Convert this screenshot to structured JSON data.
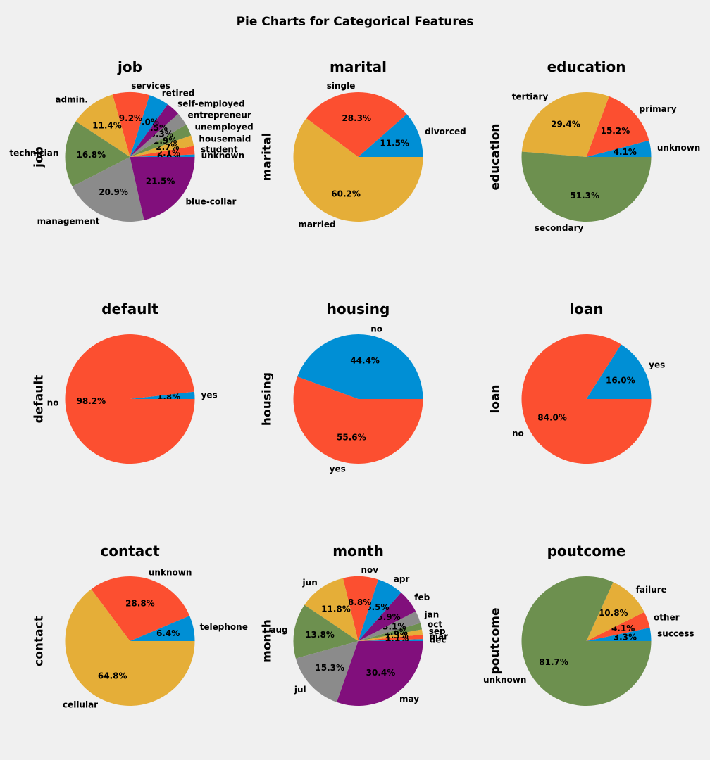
{
  "figure": {
    "title": "Pie Charts for Categorical Features"
  },
  "colors": [
    "#008fd5",
    "#fc4f30",
    "#e5ae38",
    "#6d904f",
    "#8b8b8b",
    "#810f7c"
  ],
  "chart_data": [
    {
      "type": "pie",
      "title": "job",
      "ylabel": "job",
      "categories": [
        "unknown",
        "student",
        "housemaid",
        "unemployed",
        "entrepreneur",
        "self-employed",
        "retired",
        "services",
        "admin.",
        "technician",
        "management",
        "blue-collar"
      ],
      "values": [
        0.6,
        2.1,
        2.7,
        2.9,
        3.3,
        3.5,
        5.0,
        9.2,
        11.4,
        16.8,
        20.9,
        21.5
      ],
      "pct_labels": [
        "0.6%",
        "2.1%",
        "2.7%",
        "2.9%",
        "3.3%",
        "3.5%",
        "5.0%",
        "9.2%",
        "11.4%",
        "16.8%",
        "20.9%",
        "21.5%"
      ]
    },
    {
      "type": "pie",
      "title": "marital",
      "ylabel": "marital",
      "categories": [
        "divorced",
        "single",
        "married"
      ],
      "values": [
        11.5,
        28.3,
        60.2
      ],
      "pct_labels": [
        "11.5%",
        "28.3%",
        "60.2%"
      ]
    },
    {
      "type": "pie",
      "title": "education",
      "ylabel": "education",
      "categories": [
        "unknown",
        "primary",
        "tertiary",
        "secondary"
      ],
      "values": [
        4.1,
        15.2,
        29.4,
        51.3
      ],
      "pct_labels": [
        "4.1%",
        "15.2%",
        "29.4%",
        "51.3%"
      ]
    },
    {
      "type": "pie",
      "title": "default",
      "ylabel": "default",
      "categories": [
        "yes",
        "no"
      ],
      "values": [
        1.8,
        98.2
      ],
      "pct_labels": [
        "1.8%",
        "98.2%"
      ]
    },
    {
      "type": "pie",
      "title": "housing",
      "ylabel": "housing",
      "categories": [
        "no",
        "yes"
      ],
      "values": [
        44.4,
        55.6
      ],
      "pct_labels": [
        "44.4%",
        "55.6%"
      ]
    },
    {
      "type": "pie",
      "title": "loan",
      "ylabel": "loan",
      "categories": [
        "yes",
        "no"
      ],
      "values": [
        16.0,
        84.0
      ],
      "pct_labels": [
        "16.0%",
        "84.0%"
      ]
    },
    {
      "type": "pie",
      "title": "contact",
      "ylabel": "contact",
      "categories": [
        "telephone",
        "unknown",
        "cellular"
      ],
      "values": [
        6.4,
        28.8,
        64.8
      ],
      "pct_labels": [
        "6.4%",
        "28.8%",
        "64.8%"
      ]
    },
    {
      "type": "pie",
      "title": "month",
      "ylabel": "month",
      "categories": [
        "dec",
        "mar",
        "sep",
        "oct",
        "jan",
        "feb",
        "apr",
        "nov",
        "jun",
        "aug",
        "jul",
        "may"
      ],
      "values": [
        0.5,
        1.1,
        1.3,
        1.6,
        3.1,
        5.9,
        6.5,
        8.8,
        11.8,
        13.8,
        15.3,
        30.4
      ],
      "pct_labels": [
        "0.5%",
        "1.1%",
        "1.3%",
        "1.6%",
        "3.1%",
        "5.9%",
        "6.5%",
        "8.8%",
        "11.8%",
        "13.8%",
        "15.3%",
        "30.4%"
      ]
    },
    {
      "type": "pie",
      "title": "poutcome",
      "ylabel": "poutcome",
      "categories": [
        "success",
        "other",
        "failure",
        "unknown"
      ],
      "values": [
        3.3,
        4.1,
        10.8,
        81.7
      ],
      "pct_labels": [
        "3.3%",
        "4.1%",
        "10.8%",
        "81.7%"
      ]
    }
  ]
}
